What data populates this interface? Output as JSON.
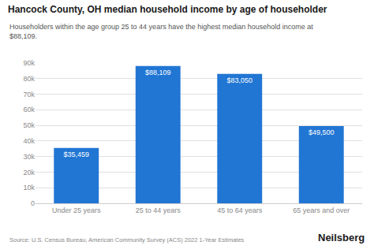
{
  "chart_data": {
    "type": "bar",
    "title": "Hancock County, OH median household income by age of householder",
    "subtitle": "Householders within the age group 25 to 44 years have the highest median household income at\n$88,109.",
    "categories": [
      "Under 25 years",
      "25 to 44 years",
      "45 to 64 years",
      "65 years and over"
    ],
    "values": [
      35459,
      88109,
      83050,
      49500
    ],
    "value_labels": [
      "$35,459",
      "$88,109",
      "$83,050",
      "$49,500"
    ],
    "data_labels": true,
    "color": "#2176d4",
    "ylim": [
      0,
      90000
    ],
    "yticks": [
      0,
      {
        "value": 10000,
        "label": "10k"
      },
      {
        "value": 20000,
        "label": "20k"
      },
      {
        "value": 30000,
        "label": "30k"
      },
      {
        "value": 40000,
        "label": "40k"
      },
      {
        "value": 50000,
        "label": "50k"
      },
      {
        "value": 60000,
        "label": "60k"
      },
      {
        "value": 70000,
        "label": "70k"
      },
      {
        "value": 80000,
        "label": "80k"
      },
      {
        "value": 90000,
        "label": "90k"
      }
    ],
    "grid": true,
    "annotations": [
      "Source: U.S. Census Bureau, American Community Survey (ACS) 2022 1-Year Estimates",
      "Neilsberg"
    ]
  }
}
